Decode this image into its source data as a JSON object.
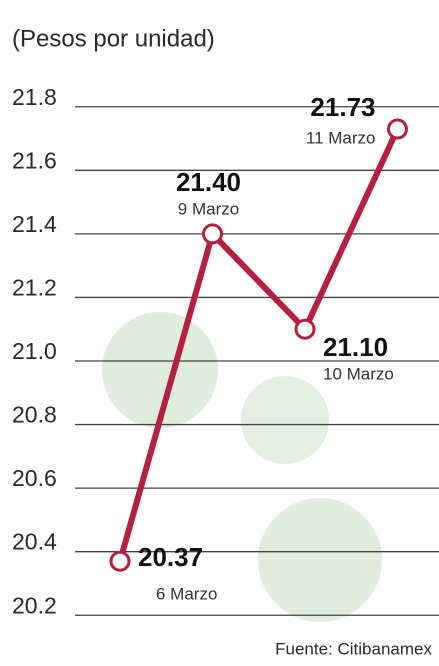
{
  "chart_data": {
    "type": "line",
    "title": "(Pesos por unidad)",
    "source": "Fuente: Citibanamex",
    "categories": [
      "6 Marzo",
      "9 Marzo",
      "10 Marzo",
      "11 Marzo"
    ],
    "values": [
      20.37,
      21.4,
      21.1,
      21.73
    ],
    "value_labels": [
      "20.37",
      "21.40",
      "21.10",
      "21.73"
    ],
    "color": "#b3213f",
    "ylim": [
      20.1,
      21.9
    ],
    "yticks": [
      20.2,
      20.4,
      20.6,
      20.8,
      {
        "value": 21,
        "label": "21.0"
      },
      21.2,
      21.4,
      21.6,
      21.8
    ],
    "grid": true
  }
}
